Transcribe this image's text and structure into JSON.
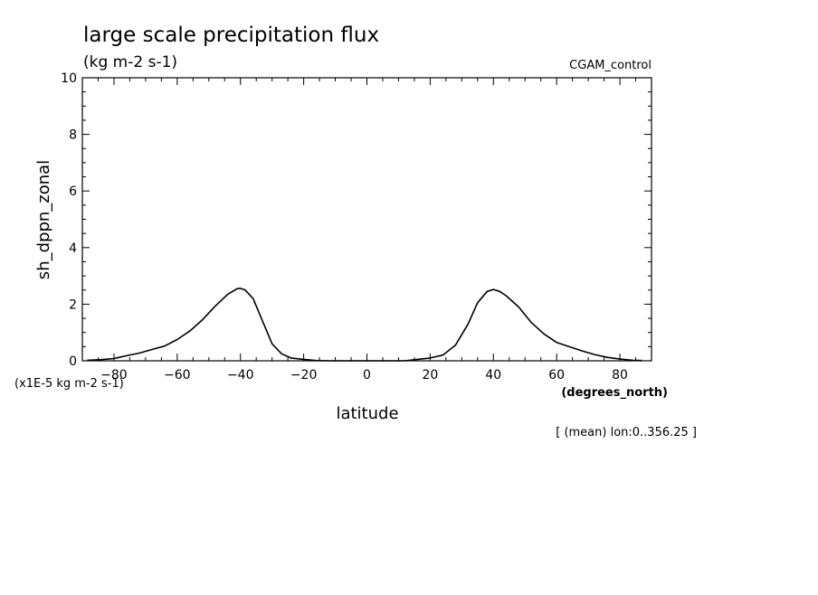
{
  "chart_data": {
    "type": "line",
    "title": "large scale precipitation flux",
    "units": "(kg m-2 s-1)",
    "experiment": "CGAM_control",
    "ylabel": "sh_dppn_zonal",
    "yscale_note": "(x1E-5 kg m-2 s-1)",
    "xlabel": "latitude",
    "x_units": "(degrees_north)",
    "footer": "[ (mean) lon:0..356.25 ]",
    "xlim": [
      -90,
      90
    ],
    "ylim": [
      0,
      10
    ],
    "xticks": [
      -80,
      -60,
      -40,
      -20,
      0,
      20,
      40,
      60,
      80
    ],
    "xtick_labels": [
      "-80",
      "-60",
      "-40",
      "-20",
      "0",
      "20",
      "40",
      "60",
      "80"
    ],
    "yticks": [
      0,
      2,
      4,
      6,
      8,
      10
    ],
    "ytick_labels": [
      "0",
      "2",
      "4",
      "6",
      "8",
      "10"
    ],
    "grid": false,
    "series": [
      {
        "x": [
          -88.5,
          -84,
          -80,
          -76,
          -72,
          -68,
          -64,
          -60,
          -56,
          -52,
          -48,
          -44,
          -41,
          -40,
          -38.5,
          -36,
          -33,
          -30,
          -27,
          -24,
          -20,
          -16,
          -12,
          -8,
          -4,
          0,
          4,
          8,
          12,
          16,
          20,
          24,
          28,
          32,
          35,
          38,
          40,
          42,
          44,
          48,
          52,
          56,
          60,
          64,
          68,
          72,
          76,
          80,
          84,
          87
        ],
        "y": [
          0.02,
          0.04,
          0.08,
          0.18,
          0.27,
          0.4,
          0.52,
          0.75,
          1.05,
          1.45,
          1.93,
          2.35,
          2.55,
          2.56,
          2.5,
          2.2,
          1.4,
          0.6,
          0.25,
          0.1,
          0.05,
          0.01,
          0.0,
          0.0,
          0.0,
          0.0,
          0.0,
          0.0,
          0.0,
          0.05,
          0.1,
          0.2,
          0.55,
          1.3,
          2.05,
          2.45,
          2.52,
          2.45,
          2.3,
          1.9,
          1.35,
          0.95,
          0.65,
          0.5,
          0.35,
          0.22,
          0.12,
          0.06,
          0.02,
          0.01
        ],
        "color": "#000000"
      }
    ]
  }
}
